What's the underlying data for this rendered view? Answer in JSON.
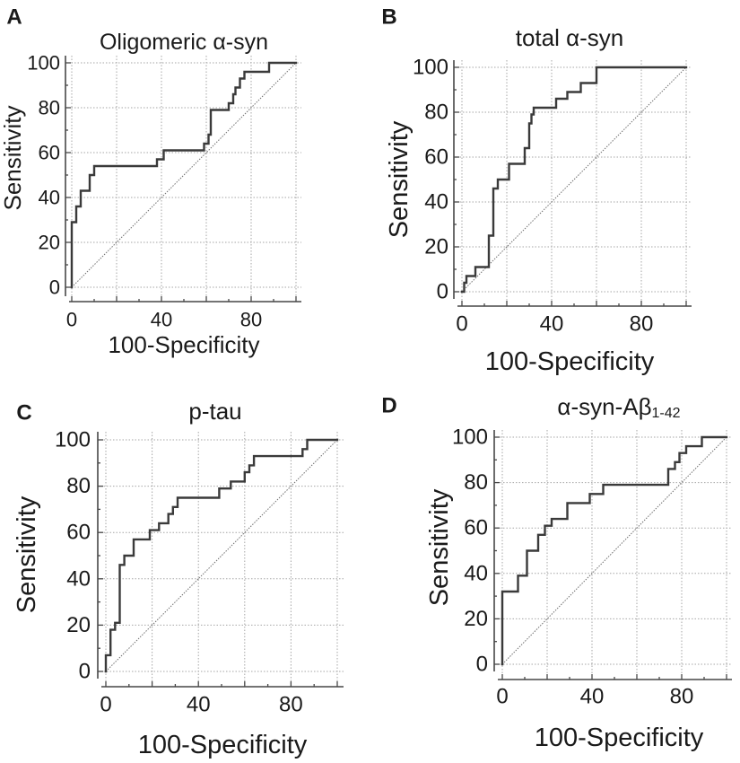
{
  "colors": {
    "curve": "#3a3a3a",
    "reference": "#6e6e6e",
    "grid": "#a6a6a6",
    "axis": "#474747",
    "text": "#1a1a1a"
  },
  "chart_data": [
    {
      "panel": "A",
      "type": "line",
      "title": "Oligomeric α-syn",
      "xlabel": "100-Specificity",
      "ylabel": "Sensitivity",
      "xlim": [
        0,
        100
      ],
      "ylim": [
        0,
        100
      ],
      "grid": true,
      "x_ticks": [
        0,
        40,
        80
      ],
      "y_ticks": [
        0,
        20,
        40,
        60,
        80,
        100
      ],
      "reference_line": [
        [
          0,
          0
        ],
        [
          100,
          100
        ]
      ],
      "roc_curve": [
        [
          0,
          0
        ],
        [
          0,
          29
        ],
        [
          2,
          29
        ],
        [
          2,
          36
        ],
        [
          4,
          36
        ],
        [
          4,
          43
        ],
        [
          8,
          43
        ],
        [
          8,
          50
        ],
        [
          10,
          50
        ],
        [
          10,
          54
        ],
        [
          38,
          54
        ],
        [
          38,
          57
        ],
        [
          41,
          57
        ],
        [
          41,
          61
        ],
        [
          59,
          61
        ],
        [
          59,
          64
        ],
        [
          61,
          64
        ],
        [
          61,
          68
        ],
        [
          62,
          68
        ],
        [
          62,
          79
        ],
        [
          70,
          79
        ],
        [
          70,
          82
        ],
        [
          72,
          82
        ],
        [
          72,
          86
        ],
        [
          73,
          86
        ],
        [
          73,
          89
        ],
        [
          75,
          89
        ],
        [
          75,
          93
        ],
        [
          77,
          93
        ],
        [
          77,
          96
        ],
        [
          88,
          96
        ],
        [
          88,
          100
        ],
        [
          100,
          100
        ]
      ]
    },
    {
      "panel": "B",
      "type": "line",
      "title": "total α-syn",
      "xlabel": "100-Specificity",
      "ylabel": "Sensitivity",
      "xlim": [
        0,
        100
      ],
      "ylim": [
        0,
        100
      ],
      "grid": true,
      "x_ticks": [
        0,
        40,
        80
      ],
      "y_ticks": [
        0,
        20,
        40,
        60,
        80,
        100
      ],
      "reference_line": [
        [
          0,
          0
        ],
        [
          100,
          100
        ]
      ],
      "roc_curve": [
        [
          0,
          0
        ],
        [
          1,
          0
        ],
        [
          1,
          4
        ],
        [
          2,
          4
        ],
        [
          2,
          7
        ],
        [
          6,
          7
        ],
        [
          6,
          11
        ],
        [
          12,
          11
        ],
        [
          12,
          25
        ],
        [
          14,
          25
        ],
        [
          14,
          46
        ],
        [
          16,
          46
        ],
        [
          16,
          50
        ],
        [
          21,
          50
        ],
        [
          21,
          57
        ],
        [
          28,
          57
        ],
        [
          28,
          64
        ],
        [
          30,
          64
        ],
        [
          30,
          75
        ],
        [
          31,
          75
        ],
        [
          31,
          79
        ],
        [
          32,
          79
        ],
        [
          32,
          82
        ],
        [
          42,
          82
        ],
        [
          42,
          86
        ],
        [
          47,
          86
        ],
        [
          47,
          89
        ],
        [
          53,
          89
        ],
        [
          53,
          93
        ],
        [
          60,
          93
        ],
        [
          60,
          100
        ],
        [
          100,
          100
        ]
      ]
    },
    {
      "panel": "C",
      "type": "line",
      "title": "p-tau",
      "xlabel": "100-Specificity",
      "ylabel": "Sensitivity",
      "xlim": [
        0,
        100
      ],
      "ylim": [
        0,
        100
      ],
      "grid": true,
      "x_ticks": [
        0,
        40,
        80
      ],
      "y_ticks": [
        0,
        20,
        40,
        60,
        80,
        100
      ],
      "reference_line": [
        [
          0,
          0
        ],
        [
          100,
          100
        ]
      ],
      "roc_curve": [
        [
          0,
          0
        ],
        [
          0,
          7
        ],
        [
          2,
          7
        ],
        [
          2,
          18
        ],
        [
          4,
          18
        ],
        [
          4,
          21
        ],
        [
          6,
          21
        ],
        [
          6,
          46
        ],
        [
          8,
          46
        ],
        [
          8,
          50
        ],
        [
          12,
          50
        ],
        [
          12,
          57
        ],
        [
          19,
          57
        ],
        [
          19,
          61
        ],
        [
          23,
          61
        ],
        [
          23,
          64
        ],
        [
          27,
          64
        ],
        [
          27,
          68
        ],
        [
          29,
          68
        ],
        [
          29,
          71
        ],
        [
          31,
          71
        ],
        [
          31,
          75
        ],
        [
          49,
          75
        ],
        [
          49,
          79
        ],
        [
          54,
          79
        ],
        [
          54,
          82
        ],
        [
          60,
          82
        ],
        [
          60,
          86
        ],
        [
          62,
          86
        ],
        [
          62,
          89
        ],
        [
          64,
          89
        ],
        [
          64,
          93
        ],
        [
          85,
          93
        ],
        [
          85,
          96
        ],
        [
          87,
          96
        ],
        [
          87,
          100
        ],
        [
          100,
          100
        ]
      ]
    },
    {
      "panel": "D",
      "type": "line",
      "title": "α-syn-Aβ",
      "title_subscript": "1-42",
      "xlabel": "100-Specificity",
      "ylabel": "Sensitivity",
      "xlim": [
        0,
        100
      ],
      "ylim": [
        0,
        100
      ],
      "grid": true,
      "x_ticks": [
        0,
        40,
        80
      ],
      "y_ticks": [
        0,
        20,
        40,
        60,
        80,
        100
      ],
      "reference_line": [
        [
          0,
          0
        ],
        [
          100,
          100
        ]
      ],
      "roc_curve": [
        [
          0,
          0
        ],
        [
          0,
          32
        ],
        [
          7,
          32
        ],
        [
          7,
          39
        ],
        [
          11,
          39
        ],
        [
          11,
          50
        ],
        [
          16,
          50
        ],
        [
          16,
          57
        ],
        [
          19,
          57
        ],
        [
          19,
          61
        ],
        [
          22,
          61
        ],
        [
          22,
          64
        ],
        [
          29,
          64
        ],
        [
          29,
          71
        ],
        [
          39,
          71
        ],
        [
          39,
          75
        ],
        [
          45,
          75
        ],
        [
          45,
          79
        ],
        [
          74,
          79
        ],
        [
          74,
          86
        ],
        [
          77,
          86
        ],
        [
          77,
          89
        ],
        [
          79,
          89
        ],
        [
          79,
          93
        ],
        [
          82,
          93
        ],
        [
          82,
          96
        ],
        [
          89,
          96
        ],
        [
          89,
          100
        ],
        [
          100,
          100
        ]
      ]
    }
  ]
}
